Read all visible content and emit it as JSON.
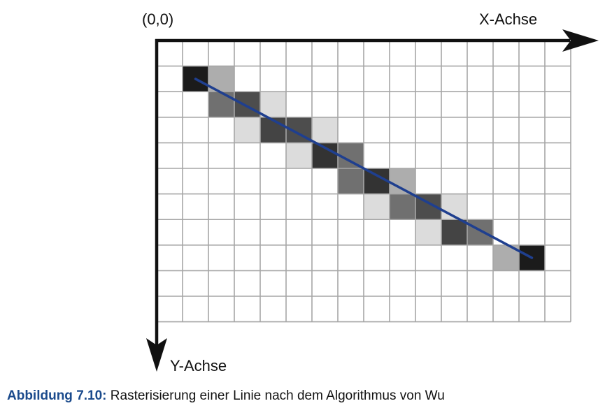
{
  "figure": {
    "origin_label": "(0,0)",
    "x_axis_label": "X-Achse",
    "y_axis_label": "Y-Achse",
    "grid_columns": 16,
    "grid_rows": 11,
    "line": {
      "start_cell": [
        1,
        1
      ],
      "end_cell": [
        14,
        8
      ],
      "color": "#1f3f8f"
    },
    "pixels": [
      {
        "col": 1,
        "row": 1,
        "shade": "#1b1b1b"
      },
      {
        "col": 2,
        "row": 1,
        "shade": "#adadad"
      },
      {
        "col": 2,
        "row": 2,
        "shade": "#707070"
      },
      {
        "col": 3,
        "row": 2,
        "shade": "#4d4d4d"
      },
      {
        "col": 4,
        "row": 2,
        "shade": "#dcdcdc"
      },
      {
        "col": 3,
        "row": 3,
        "shade": "#dcdcdc"
      },
      {
        "col": 4,
        "row": 3,
        "shade": "#444444"
      },
      {
        "col": 5,
        "row": 3,
        "shade": "#4d4d4d"
      },
      {
        "col": 6,
        "row": 3,
        "shade": "#dcdcdc"
      },
      {
        "col": 5,
        "row": 4,
        "shade": "#dcdcdc"
      },
      {
        "col": 6,
        "row": 4,
        "shade": "#333333"
      },
      {
        "col": 7,
        "row": 4,
        "shade": "#707070"
      },
      {
        "col": 7,
        "row": 5,
        "shade": "#707070"
      },
      {
        "col": 8,
        "row": 5,
        "shade": "#333333"
      },
      {
        "col": 9,
        "row": 5,
        "shade": "#adadad"
      },
      {
        "col": 8,
        "row": 6,
        "shade": "#dcdcdc"
      },
      {
        "col": 9,
        "row": 6,
        "shade": "#707070"
      },
      {
        "col": 10,
        "row": 6,
        "shade": "#4d4d4d"
      },
      {
        "col": 11,
        "row": 6,
        "shade": "#dcdcdc"
      },
      {
        "col": 10,
        "row": 7,
        "shade": "#dcdcdc"
      },
      {
        "col": 11,
        "row": 7,
        "shade": "#444444"
      },
      {
        "col": 12,
        "row": 7,
        "shade": "#707070"
      },
      {
        "col": 13,
        "row": 8,
        "shade": "#adadad"
      },
      {
        "col": 14,
        "row": 8,
        "shade": "#1b1b1b"
      }
    ]
  },
  "caption": {
    "label": "Abbildung 7.10:",
    "text": " Rasterisierung einer Linie nach dem Algorithmus von Wu"
  }
}
